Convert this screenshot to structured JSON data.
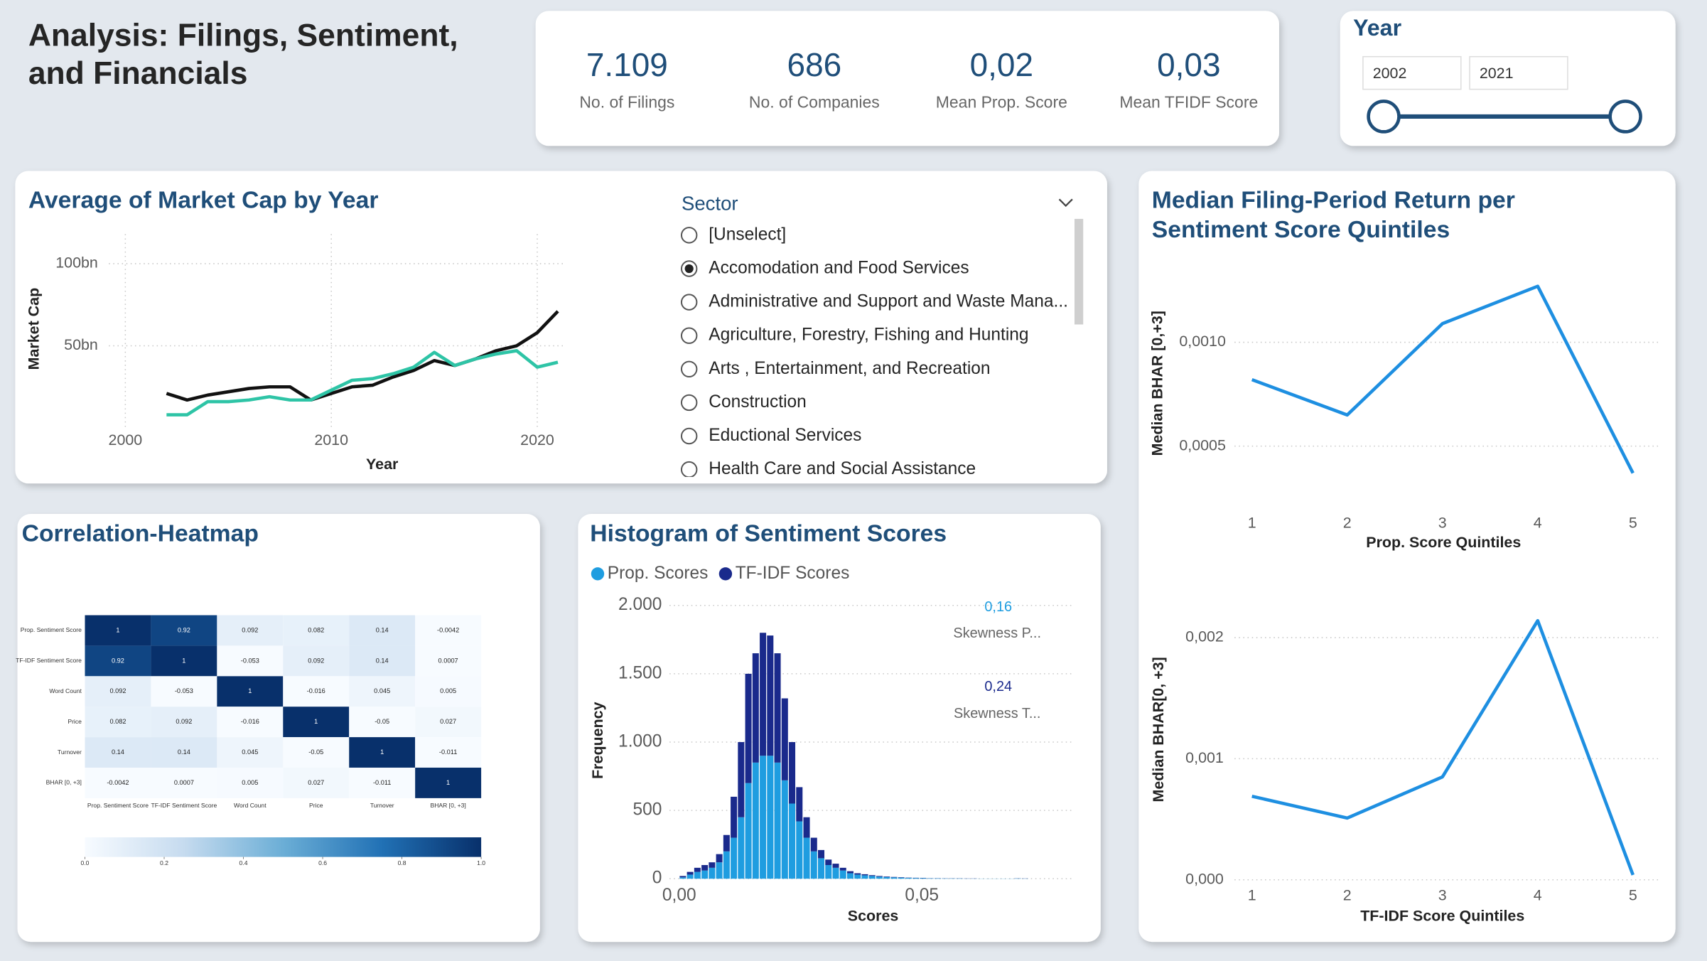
{
  "header": {
    "title": "Analysis: Filings, Sentiment, and Financials"
  },
  "kpis": [
    {
      "value": "7.109",
      "label": "No. of Filings"
    },
    {
      "value": "686",
      "label": "No. of Companies"
    },
    {
      "value": "0,02",
      "label": "Mean Prop. Score"
    },
    {
      "value": "0,03",
      "label": "Mean TFIDF Score"
    }
  ],
  "year_slicer": {
    "title": "Year",
    "start": 2002,
    "end": 2021
  },
  "sector_slicer": {
    "title": "Sector",
    "selected": 1,
    "items": [
      "[Unselect]",
      "Accomodation and Food Services",
      "Administrative and Support and Waste Mana...",
      "Agriculture, Forestry, Fishing and Hunting",
      "Arts , Entertainment, and Recreation",
      "Construction",
      "Eductional Services",
      "Health Care and Social Assistance"
    ]
  },
  "chart_data": [
    {
      "type": "line",
      "title": "Average of Market Cap by Year",
      "x_label": "Year",
      "y_label": "Market Cap",
      "x": [
        2002,
        2003,
        2004,
        2005,
        2006,
        2007,
        2008,
        2009,
        2010,
        2011,
        2012,
        2013,
        2014,
        2015,
        2016,
        2017,
        2018,
        2019,
        2020,
        2021
      ],
      "series": [
        {
          "color": "#111111",
          "values": [
            21,
            17,
            20,
            22,
            24,
            25,
            25,
            17,
            21,
            25,
            26,
            31,
            35,
            41,
            38,
            42,
            47,
            50,
            58,
            71
          ]
        },
        {
          "color": "#2ec4a6",
          "values": [
            8,
            8,
            16,
            16,
            17,
            19,
            17,
            17,
            23,
            29,
            30,
            33,
            37,
            46,
            38,
            42,
            45,
            47,
            37,
            40
          ]
        }
      ],
      "xlim": [
        1999.2,
        2021.4
      ],
      "xticks": [
        2000,
        2010,
        2020
      ],
      "ylim": [
        0,
        118
      ],
      "yticks": [
        {
          "value": 100,
          "label": "100bn"
        },
        {
          "value": 50,
          "label": "50bn"
        }
      ],
      "grid": true
    },
    {
      "type": "line",
      "title": "Median Filing-Period Return per Sentiment Score Quintiles",
      "x_label": "Prop. Score Quintiles",
      "y_label": "Median BHAR [0,+3]",
      "categories": [
        "1",
        "2",
        "3",
        "4",
        "5"
      ],
      "series": [
        {
          "color": "#1e8fe1",
          "values": [
            0.00082,
            0.00065,
            0.00109,
            0.00127,
            0.00037
          ]
        }
      ],
      "ylim": [
        0.00021,
        0.00139
      ],
      "yticks": [
        {
          "value": 0.001,
          "label": "0,0010"
        },
        {
          "value": 0.0005,
          "label": "0,0005"
        }
      ],
      "grid": true
    },
    {
      "type": "line",
      "x_label": "TF-IDF Score Quintiles",
      "y_label": "Median BHAR[0, +3]",
      "categories": [
        "1",
        "2",
        "3",
        "4",
        "5"
      ],
      "series": [
        {
          "color": "#1e8fe1",
          "values": [
            0.00069,
            0.00051,
            0.00085,
            0.00214,
            4e-05
          ]
        }
      ],
      "ylim": [
        0,
        0.00241
      ],
      "yticks": [
        {
          "value": 0.002,
          "label": "0,002"
        },
        {
          "value": 0.001,
          "label": "0,001"
        },
        {
          "value": 0,
          "label": "0,000"
        }
      ],
      "grid": true
    },
    {
      "type": "heatmap",
      "title": "Correlation-Heatmap",
      "categories": [
        "Prop. Sentiment Score",
        "TF-IDF Sentiment Score",
        "Word Count",
        "Price",
        "Turnover",
        "BHAR [0, +3]"
      ],
      "values": [
        [
          1,
          0.92,
          0.092,
          0.082,
          0.14,
          -0.0042
        ],
        [
          0.92,
          1,
          -0.053,
          0.092,
          0.14,
          0.0007
        ],
        [
          0.092,
          -0.053,
          1,
          -0.016,
          0.045,
          0.005
        ],
        [
          0.082,
          0.092,
          -0.016,
          1,
          -0.05,
          0.027
        ],
        [
          0.14,
          0.14,
          0.045,
          -0.05,
          1,
          -0.011
        ],
        [
          -0.0042,
          0.0007,
          0.005,
          0.027,
          -0.011,
          1
        ]
      ],
      "colors": [
        "#f7fbff",
        "#c6dbef",
        "#6baed6",
        "#2171b5",
        "#08306b"
      ],
      "colorbar": {
        "lim": [
          0,
          1
        ],
        "ticks": [
          {
            "value": 0,
            "label": "0.0"
          },
          {
            "value": 0.2,
            "label": "0.2"
          },
          {
            "value": 0.4,
            "label": "0.4"
          },
          {
            "value": 0.6,
            "label": "0.6"
          },
          {
            "value": 0.8,
            "label": "0.8"
          },
          {
            "value": 1,
            "label": "1.0"
          }
        ]
      }
    },
    {
      "type": "histogram",
      "title": "Histogram of Sentiment Scores",
      "x_label": "Scores",
      "y_label": "Frequency",
      "stacked": true,
      "bins": [
        0,
        0.0015,
        0.003,
        0.0045,
        0.006,
        0.0075,
        0.009,
        0.0105,
        0.012,
        0.0135,
        0.015,
        0.0165,
        0.018,
        0.0195,
        0.021,
        0.0225,
        0.024,
        0.0255,
        0.027,
        0.0285,
        0.03,
        0.0315,
        0.033,
        0.0345,
        0.036,
        0.0375,
        0.039,
        0.0405,
        0.042,
        0.0435,
        0.045,
        0.0465,
        0.048,
        0.0495,
        0.051,
        0.0525,
        0.054,
        0.0555,
        0.057,
        0.0585,
        0.06,
        0.0615,
        0.063,
        0.0645,
        0.066,
        0.0675,
        0.069,
        0.0705,
        0.072
      ],
      "series": [
        {
          "name": "Prop. Scores",
          "color": "#1f9de0",
          "values": [
            10,
            30,
            50,
            60,
            80,
            120,
            200,
            300,
            450,
            700,
            850,
            900,
            900,
            850,
            720,
            550,
            420,
            300,
            200,
            150,
            100,
            80,
            60,
            40,
            30,
            25,
            20,
            15,
            12,
            10,
            8,
            6,
            5,
            4,
            3,
            3,
            2,
            2,
            2,
            1,
            1,
            1,
            1,
            1,
            1,
            1,
            2,
            1
          ]
        },
        {
          "name": "TF-IDF Scores",
          "color": "#1a2a8c",
          "values": [
            10,
            20,
            30,
            40,
            40,
            60,
            120,
            300,
            550,
            800,
            800,
            900,
            880,
            800,
            600,
            450,
            250,
            150,
            100,
            60,
            40,
            30,
            20,
            15,
            10,
            8,
            6,
            5,
            4,
            3,
            3,
            2,
            2,
            2,
            1,
            1,
            1,
            1,
            1,
            1,
            1,
            0,
            0,
            0,
            0,
            0,
            1,
            1
          ]
        }
      ],
      "xlim": [
        -0.002,
        0.081
      ],
      "xticks": [
        {
          "value": 0,
          "label": "0,00"
        },
        {
          "value": 0.05,
          "label": "0,05"
        }
      ],
      "ylim": [
        0,
        2088
      ],
      "yticks": [
        0,
        500,
        {
          "value": 1000,
          "label": "1.000"
        },
        {
          "value": 1500,
          "label": "1.500"
        },
        {
          "value": 2000,
          "label": "2.000"
        }
      ],
      "grid": true,
      "annotations": [
        {
          "value": "0,16",
          "label": "Skewness P...",
          "color": "#1f9de0"
        },
        {
          "value": "0,24",
          "label": "Skewness T...",
          "color": "#1a2a8c"
        }
      ]
    }
  ]
}
